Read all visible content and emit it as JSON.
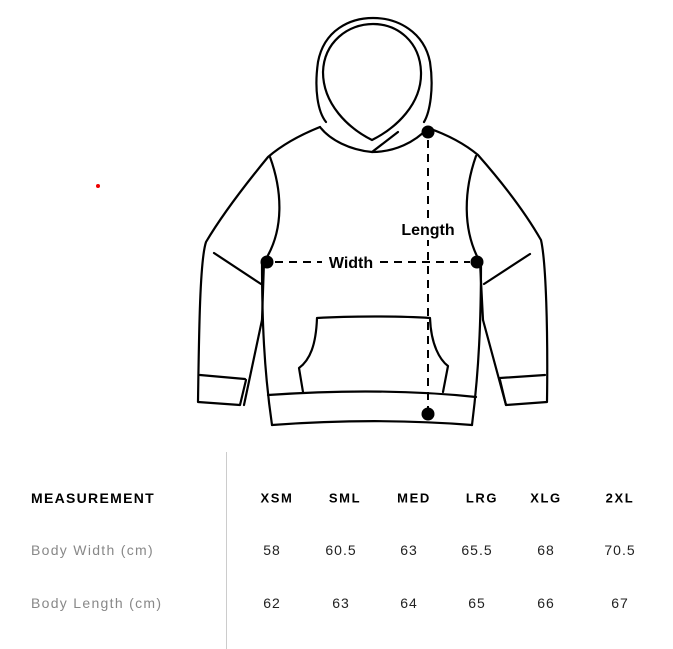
{
  "diagram": {
    "length_label": "Length",
    "width_label": "Width"
  },
  "table": {
    "header_label": "MEASUREMENT",
    "sizes": [
      "XSM",
      "SML",
      "MED",
      "LRG",
      "XLG",
      "2XL"
    ],
    "rows": [
      {
        "label": "Body Width (cm)",
        "values": [
          "58",
          "60.5",
          "63",
          "65.5",
          "68",
          "70.5"
        ]
      },
      {
        "label": "Body Length (cm)",
        "values": [
          "62",
          "63",
          "64",
          "65",
          "66",
          "67"
        ]
      }
    ]
  },
  "colors": {
    "marker": "#e00000",
    "divider": "#cccccc",
    "row_label": "#888888"
  }
}
